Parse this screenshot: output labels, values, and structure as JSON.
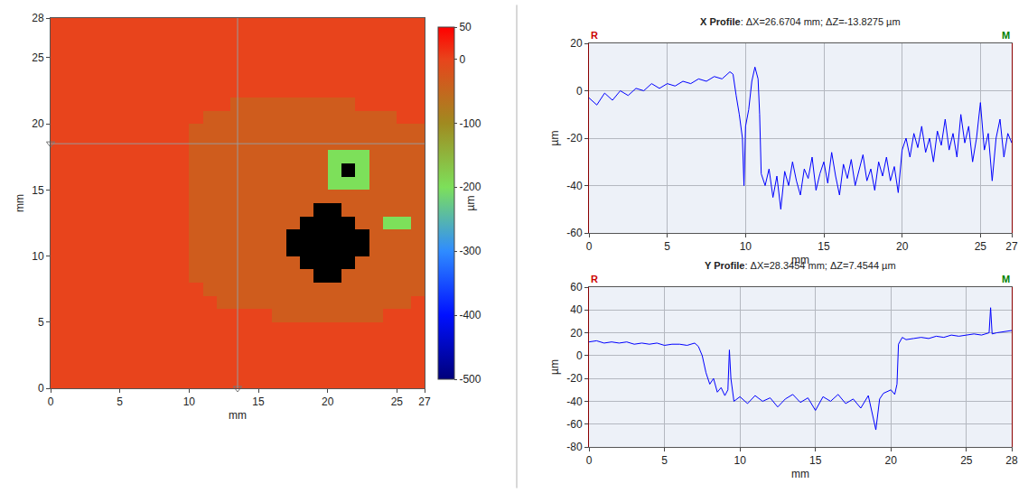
{
  "chart_data": [
    {
      "type": "heatmap",
      "xlabel": "mm",
      "ylabel": "mm",
      "x": [
        0.5,
        1.5,
        2.5,
        3.5,
        4.5,
        5.5,
        6.5,
        7.5,
        8.5,
        9.5,
        10.5,
        11.5,
        12.5,
        13.5,
        14.5,
        15.5,
        16.5,
        17.5,
        18.5,
        19.5,
        20.5,
        21.5,
        22.5,
        23.5,
        24.5,
        25.5,
        26.5
      ],
      "y": [
        0.5,
        1.5,
        2.5,
        3.5,
        4.5,
        5.5,
        6.5,
        7.5,
        8.5,
        9.5,
        10.5,
        11.5,
        12.5,
        13.5,
        14.5,
        15.5,
        16.5,
        17.5,
        18.5,
        19.5,
        20.5,
        21.5,
        22.5,
        23.5,
        24.5,
        25.5,
        26.5,
        27.5
      ],
      "z": [
        [
          0,
          0,
          0,
          0,
          0,
          0,
          0,
          0,
          0,
          0,
          0,
          0,
          0,
          0,
          0,
          0,
          0,
          0,
          0,
          0,
          0,
          0,
          0,
          0,
          0,
          0,
          0
        ],
        [
          0,
          0,
          0,
          0,
          0,
          0,
          0,
          0,
          0,
          0,
          0,
          0,
          0,
          0,
          0,
          0,
          0,
          0,
          0,
          0,
          0,
          0,
          0,
          0,
          0,
          0,
          0
        ],
        [
          0,
          0,
          0,
          0,
          0,
          0,
          0,
          0,
          0,
          0,
          0,
          0,
          0,
          0,
          0,
          0,
          0,
          0,
          0,
          0,
          0,
          0,
          0,
          0,
          0,
          0,
          0
        ],
        [
          0,
          0,
          0,
          0,
          0,
          0,
          0,
          0,
          0,
          0,
          0,
          0,
          0,
          0,
          0,
          0,
          0,
          0,
          0,
          0,
          0,
          0,
          0,
          0,
          0,
          0,
          0
        ],
        [
          0,
          0,
          0,
          0,
          0,
          0,
          0,
          0,
          0,
          0,
          0,
          0,
          0,
          0,
          0,
          0,
          0,
          0,
          0,
          0,
          0,
          0,
          0,
          0,
          0,
          0,
          0
        ],
        [
          0,
          0,
          0,
          0,
          0,
          0,
          0,
          0,
          0,
          0,
          0,
          0,
          0,
          0,
          0,
          0,
          -35,
          -35,
          -35,
          -35,
          -35,
          -35,
          -35,
          -35,
          0,
          0,
          0
        ],
        [
          0,
          0,
          0,
          0,
          0,
          0,
          0,
          0,
          0,
          0,
          0,
          0,
          -35,
          -35,
          -35,
          -35,
          -35,
          -35,
          -35,
          -35,
          -35,
          -35,
          -35,
          -35,
          -35,
          -35,
          0
        ],
        [
          0,
          0,
          0,
          0,
          0,
          0,
          0,
          0,
          0,
          0,
          0,
          -35,
          -35,
          -35,
          -35,
          -35,
          -35,
          -35,
          -35,
          -35,
          -35,
          -35,
          -35,
          -35,
          -35,
          -35,
          -35
        ],
        [
          0,
          0,
          0,
          0,
          0,
          0,
          0,
          0,
          0,
          0,
          -35,
          -35,
          -35,
          -35,
          -35,
          -35,
          -35,
          -35,
          -35,
          null,
          null,
          -35,
          -35,
          -35,
          -35,
          -35,
          -35
        ],
        [
          0,
          0,
          0,
          0,
          0,
          0,
          0,
          0,
          0,
          0,
          -35,
          -35,
          -35,
          -35,
          -35,
          -35,
          -35,
          -35,
          null,
          null,
          null,
          null,
          -35,
          -35,
          -35,
          -35,
          -35
        ],
        [
          0,
          0,
          0,
          0,
          0,
          0,
          0,
          0,
          0,
          0,
          -35,
          -35,
          -35,
          -35,
          -35,
          -35,
          -35,
          null,
          null,
          null,
          null,
          null,
          null,
          -35,
          -35,
          -35,
          -35
        ],
        [
          0,
          0,
          0,
          0,
          0,
          0,
          0,
          0,
          0,
          0,
          -35,
          -35,
          -35,
          -35,
          -35,
          -35,
          -35,
          null,
          null,
          null,
          null,
          null,
          null,
          -35,
          -35,
          -35,
          -35
        ],
        [
          0,
          0,
          0,
          0,
          0,
          0,
          0,
          0,
          0,
          0,
          -35,
          -35,
          -35,
          -35,
          -35,
          -35,
          -35,
          -35,
          null,
          null,
          null,
          null,
          -35,
          -35,
          -200,
          -200,
          -35
        ],
        [
          0,
          0,
          0,
          0,
          0,
          0,
          0,
          0,
          0,
          0,
          -35,
          -35,
          -35,
          -35,
          -35,
          -35,
          -35,
          -35,
          -35,
          null,
          null,
          -35,
          -35,
          -35,
          -35,
          -35,
          -35
        ],
        [
          0,
          0,
          0,
          0,
          0,
          0,
          0,
          0,
          0,
          0,
          -35,
          -35,
          -35,
          -35,
          -35,
          -35,
          -35,
          -35,
          -35,
          -35,
          -35,
          -35,
          -35,
          -35,
          -35,
          -35,
          -35
        ],
        [
          0,
          0,
          0,
          0,
          0,
          0,
          0,
          0,
          0,
          0,
          -35,
          -35,
          -35,
          -35,
          -35,
          -35,
          -35,
          -35,
          -35,
          -35,
          -200,
          -200,
          -200,
          -35,
          -35,
          -35,
          -35
        ],
        [
          0,
          0,
          0,
          0,
          0,
          0,
          0,
          0,
          0,
          0,
          -35,
          -35,
          -35,
          -35,
          -35,
          -35,
          -35,
          -35,
          -35,
          -35,
          -200,
          null,
          -200,
          -35,
          -35,
          -35,
          -35
        ],
        [
          0,
          0,
          0,
          0,
          0,
          0,
          0,
          0,
          0,
          0,
          -35,
          -35,
          -35,
          -35,
          -35,
          -35,
          -35,
          -35,
          -35,
          -35,
          -200,
          -200,
          -200,
          -35,
          -35,
          -35,
          -35
        ],
        [
          0,
          0,
          0,
          0,
          0,
          0,
          0,
          0,
          0,
          0,
          -35,
          -35,
          -35,
          -35,
          -35,
          -35,
          -35,
          -35,
          -35,
          -35,
          -35,
          -35,
          -35,
          -35,
          -35,
          -35,
          -35
        ],
        [
          0,
          0,
          0,
          0,
          0,
          0,
          0,
          0,
          0,
          0,
          -35,
          -35,
          -35,
          -35,
          -35,
          -35,
          -35,
          -35,
          -35,
          -35,
          -35,
          -35,
          -35,
          -35,
          -35,
          -35,
          -35
        ],
        [
          0,
          0,
          0,
          0,
          0,
          0,
          0,
          0,
          0,
          0,
          0,
          -35,
          -35,
          -35,
          -35,
          -35,
          -35,
          -35,
          -35,
          -35,
          -35,
          -35,
          -35,
          -35,
          -35,
          0,
          0
        ],
        [
          0,
          0,
          0,
          0,
          0,
          0,
          0,
          0,
          0,
          0,
          0,
          0,
          0,
          -35,
          -35,
          -35,
          -35,
          -35,
          -35,
          -35,
          -35,
          -35,
          0,
          0,
          0,
          0,
          0
        ],
        [
          0,
          0,
          0,
          0,
          0,
          0,
          0,
          0,
          0,
          0,
          0,
          0,
          0,
          0,
          0,
          0,
          0,
          0,
          0,
          0,
          0,
          0,
          0,
          0,
          0,
          0,
          0
        ],
        [
          0,
          0,
          0,
          0,
          0,
          0,
          0,
          0,
          0,
          0,
          0,
          0,
          0,
          0,
          0,
          0,
          0,
          0,
          0,
          0,
          0,
          0,
          0,
          0,
          0,
          0,
          0
        ],
        [
          0,
          0,
          0,
          0,
          0,
          0,
          0,
          0,
          0,
          0,
          0,
          0,
          0,
          0,
          0,
          0,
          0,
          0,
          0,
          0,
          0,
          0,
          0,
          0,
          0,
          0,
          0
        ],
        [
          0,
          0,
          0,
          0,
          0,
          0,
          0,
          0,
          0,
          0,
          0,
          0,
          0,
          0,
          0,
          0,
          0,
          0,
          0,
          0,
          0,
          0,
          0,
          0,
          0,
          0,
          0
        ],
        [
          0,
          0,
          0,
          0,
          0,
          0,
          0,
          0,
          0,
          0,
          0,
          0,
          0,
          0,
          0,
          0,
          0,
          0,
          0,
          0,
          0,
          0,
          0,
          0,
          0,
          0,
          0
        ],
        [
          0,
          0,
          0,
          0,
          0,
          0,
          0,
          0,
          0,
          0,
          0,
          0,
          0,
          0,
          0,
          0,
          0,
          0,
          0,
          0,
          0,
          0,
          0,
          0,
          0,
          0,
          0
        ]
      ],
      "xlim": [
        0,
        27
      ],
      "xticks": [
        0,
        5,
        10,
        15,
        20,
        25,
        27
      ],
      "ylim": [
        0,
        28
      ],
      "yticks": [
        0,
        5,
        10,
        15,
        20,
        25,
        28
      ],
      "grid": false,
      "colorbar": {
        "label": "µm",
        "range": [
          -500,
          50
        ],
        "ticks": [
          50,
          0,
          -100,
          -200,
          -300,
          -400,
          -500
        ]
      },
      "crosshair": {
        "x": 13.5,
        "y": 18.5
      }
    },
    {
      "type": "line",
      "title": "X Profile: ΔX=26.6704 mm; ΔZ=-13.8275 µm",
      "xlabel": "mm",
      "ylabel": "µm",
      "color": "#0000ff",
      "x": [
        0,
        0.5,
        1,
        1.5,
        2,
        2.5,
        3,
        3.5,
        4,
        4.5,
        5,
        5.5,
        6,
        6.5,
        7,
        7.5,
        8,
        8.5,
        9,
        9.2,
        9.4,
        9.6,
        9.8,
        9.9,
        10,
        10.2,
        10.4,
        10.6,
        10.8,
        10.9,
        11,
        11.25,
        11.5,
        11.75,
        12,
        12.25,
        12.5,
        12.75,
        13,
        13.25,
        13.5,
        13.75,
        14,
        14.25,
        14.5,
        14.75,
        15,
        15.25,
        15.5,
        15.75,
        16,
        16.25,
        16.5,
        16.75,
        17,
        17.25,
        17.5,
        17.75,
        18,
        18.25,
        18.5,
        18.75,
        19,
        19.25,
        19.5,
        19.75,
        20,
        20.25,
        20.5,
        20.75,
        21,
        21.25,
        21.5,
        21.75,
        22,
        22.25,
        22.5,
        22.75,
        23,
        23.25,
        23.5,
        23.75,
        24,
        24.25,
        24.5,
        24.75,
        25,
        25.25,
        25.5,
        25.75,
        26,
        26.25,
        26.5,
        26.75,
        27
      ],
      "values": [
        -3,
        -6,
        -1,
        -4,
        0,
        -2,
        1,
        0,
        3,
        1,
        3,
        2,
        4,
        3,
        5,
        4,
        6,
        5,
        8,
        7,
        -2,
        -10,
        -20,
        -40,
        -15,
        -8,
        4,
        10,
        5,
        -10,
        -35,
        -40,
        -33,
        -45,
        -36,
        -50,
        -34,
        -40,
        -30,
        -38,
        -44,
        -33,
        -37,
        -28,
        -42,
        -35,
        -30,
        -39,
        -26,
        -36,
        -44,
        -31,
        -37,
        -29,
        -40,
        -34,
        -27,
        -38,
        -33,
        -42,
        -30,
        -36,
        -28,
        -38,
        -32,
        -43,
        -25,
        -20,
        -28,
        -18,
        -24,
        -15,
        -26,
        -20,
        -30,
        -17,
        -23,
        -12,
        -25,
        -18,
        -28,
        -10,
        -22,
        -15,
        -30,
        -20,
        -5,
        -25,
        -18,
        -38,
        -20,
        -12,
        -28,
        -18,
        -22
      ],
      "xlim": [
        0,
        27
      ],
      "xticks": [
        0,
        5,
        10,
        15,
        20,
        25,
        27
      ],
      "ylim": [
        -60,
        20
      ],
      "yticks": [
        -60,
        -40,
        -20,
        0,
        20
      ],
      "grid": true,
      "corner_labels": [
        {
          "text": "R",
          "color": "#cc0000"
        },
        {
          "text": "M",
          "color": "#008000"
        }
      ]
    },
    {
      "type": "line",
      "title": "Y Profile: ΔX=28.3454 mm; ΔZ=7.4544 µm",
      "xlabel": "mm",
      "ylabel": "µm",
      "color": "#0000ff",
      "x": [
        0,
        0.5,
        1,
        1.5,
        2,
        2.5,
        3,
        3.5,
        4,
        4.5,
        5,
        5.5,
        6,
        6.5,
        7,
        7.25,
        7.5,
        7.75,
        8,
        8.25,
        8.5,
        8.75,
        9,
        9.2,
        9.3,
        9.4,
        9.6,
        10,
        10.5,
        11,
        11.5,
        12,
        12.5,
        13,
        13.5,
        14,
        14.5,
        15,
        15.5,
        16,
        16.5,
        17,
        17.5,
        18,
        18.5,
        19,
        19.25,
        19.5,
        20,
        20.25,
        20.4,
        20.5,
        20.75,
        21,
        21.5,
        22,
        22.5,
        23,
        23.5,
        24,
        24.5,
        25,
        25.5,
        26,
        26.5,
        26.6,
        26.7,
        27,
        27.5,
        28
      ],
      "values": [
        12,
        13,
        11,
        12,
        11,
        12,
        10,
        11,
        10,
        11,
        9,
        10,
        10,
        9,
        11,
        8,
        0,
        -15,
        -25,
        -20,
        -32,
        -28,
        -35,
        -30,
        5,
        -20,
        -40,
        -36,
        -42,
        -35,
        -40,
        -37,
        -45,
        -38,
        -34,
        -41,
        -37,
        -48,
        -36,
        -40,
        -34,
        -42,
        -38,
        -46,
        -35,
        -65,
        -38,
        -33,
        -30,
        -34,
        -25,
        10,
        16,
        14,
        15,
        16,
        15,
        17,
        16,
        18,
        17,
        18,
        19,
        18,
        20,
        42,
        19,
        20,
        21,
        22
      ],
      "xlim": [
        0,
        28
      ],
      "xticks": [
        0,
        5,
        10,
        15,
        20,
        25,
        28
      ],
      "ylim": [
        -80,
        60
      ],
      "yticks": [
        -80,
        -60,
        -40,
        -20,
        0,
        20,
        40,
        60
      ],
      "grid": true,
      "corner_labels": [
        {
          "text": "R",
          "color": "#cc0000"
        },
        {
          "text": "M",
          "color": "#008000"
        }
      ]
    }
  ]
}
